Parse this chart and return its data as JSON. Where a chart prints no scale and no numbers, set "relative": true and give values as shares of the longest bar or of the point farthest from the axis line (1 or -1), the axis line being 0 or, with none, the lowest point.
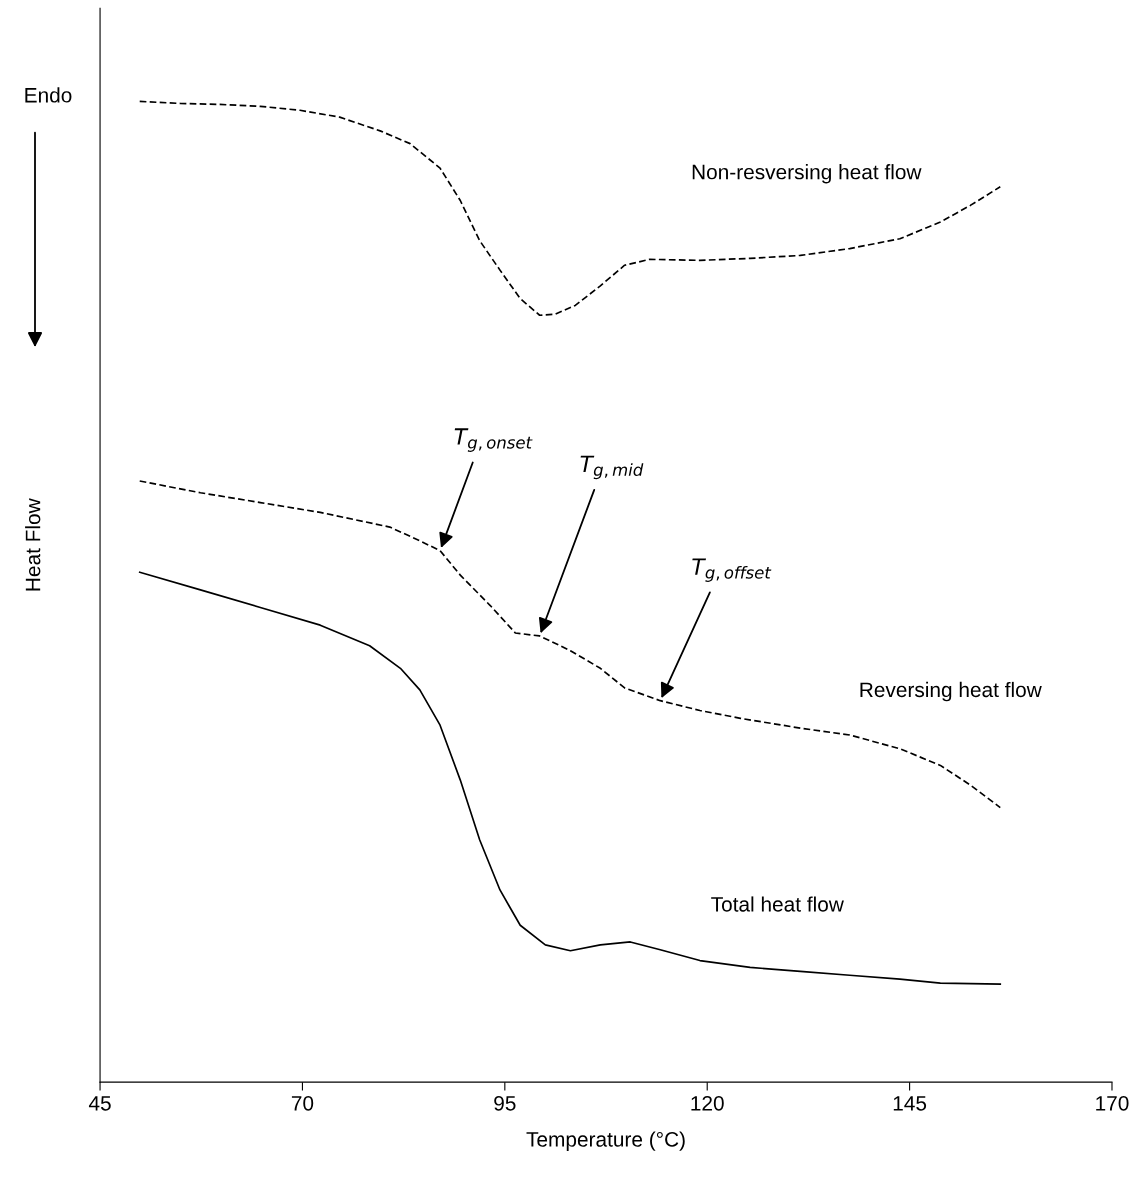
{
  "chart_data": {
    "type": "line",
    "relative": true,
    "xlabel": "Temperature (°C)",
    "ylabel": "Heat Flow",
    "xlim": [
      45,
      170
    ],
    "xticks": [
      45,
      70,
      95,
      120,
      145,
      170
    ],
    "tick_labels": "x",
    "grid": false,
    "legend": false,
    "series": [
      {
        "name": "Non-resversing heat flow",
        "color": "#000000",
        "line_style": "dashed",
        "x": [
          49.9,
          54.9,
          59.8,
          64.8,
          69.7,
          74.6,
          79.6,
          83.3,
          87.0,
          89.5,
          91.9,
          94.4,
          96.9,
          99.3,
          101.2,
          103.7,
          106.8,
          109.8,
          112.9,
          119.1,
          125.3,
          131.5,
          137.6,
          143.8,
          148.8,
          152.5,
          156.2
        ],
        "values": [
          1.0,
          0.998,
          0.997,
          0.995,
          0.991,
          0.984,
          0.97,
          0.957,
          0.932,
          0.899,
          0.858,
          0.828,
          0.799,
          0.782,
          0.783,
          0.792,
          0.812,
          0.833,
          0.839,
          0.838,
          0.84,
          0.843,
          0.85,
          0.86,
          0.877,
          0.894,
          0.913
        ]
      },
      {
        "name": "Reversing heat flow",
        "color": "#000000",
        "line_style": "dashed",
        "x": [
          49.9,
          57.4,
          64.8,
          72.2,
          80.8,
          84.5,
          87.0,
          89.5,
          93.2,
          96.3,
          99.3,
          103.1,
          106.8,
          109.8,
          114.2,
          119.1,
          124.1,
          131.5,
          137.6,
          143.8,
          148.8,
          152.5,
          156.2
        ],
        "values": [
          0.613,
          0.601,
          0.591,
          0.581,
          0.566,
          0.552,
          0.542,
          0.517,
          0.486,
          0.458,
          0.455,
          0.44,
          0.422,
          0.402,
          0.389,
          0.379,
          0.371,
          0.361,
          0.354,
          0.34,
          0.323,
          0.303,
          0.28
        ]
      },
      {
        "name": "Total heat flow",
        "color": "#000000",
        "line_style": "solid",
        "x": [
          49.9,
          57.4,
          64.8,
          72.2,
          78.3,
          82.1,
          84.5,
          87.0,
          89.5,
          91.9,
          94.4,
          96.9,
          100.0,
          103.1,
          106.8,
          110.5,
          114.2,
          119.1,
          125.3,
          131.5,
          137.6,
          143.8,
          148.8,
          156.2
        ],
        "values": [
          0.52,
          0.502,
          0.484,
          0.466,
          0.445,
          0.422,
          0.4,
          0.364,
          0.308,
          0.247,
          0.196,
          0.16,
          0.14,
          0.134,
          0.14,
          0.143,
          0.135,
          0.124,
          0.117,
          0.113,
          0.109,
          0.105,
          0.101,
          0.1
        ]
      }
    ],
    "annotations": [
      {
        "text": "T$_{g,onset}$",
        "x": 87.0,
        "y": 0.542
      },
      {
        "text": "T$_{g,mid}$",
        "x": 99.3,
        "y": 0.455
      },
      {
        "text": "T$_{g,offset}$",
        "x": 114.2,
        "y": 0.389
      },
      "Endo"
    ]
  }
}
